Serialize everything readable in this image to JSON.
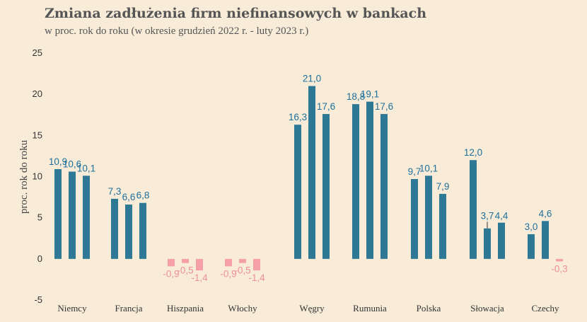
{
  "title": "Zmiana zadłużenia firm niefinansowych w bankach",
  "subtitle": "w proc. rok do roku (w okresie grudzień 2022 r. - luty 2023 r.)",
  "colors": {
    "positive": "#2c7895",
    "negative": "#f4a0a6",
    "positive_label": "#1f6f9a",
    "negative_label": "#ee8f96",
    "background": "#f8ecd9"
  },
  "chart_data": {
    "type": "bar",
    "title": "Zmiana zadłużenia firm niefinansowych w bankach",
    "subtitle": "w proc. rok do roku (w okresie grudzień 2022 r. - luty 2023 r.)",
    "xlabel": "",
    "ylabel": "proc. rok do roku",
    "ylim": [
      -5,
      25
    ],
    "yticks": [
      "-5",
      "0",
      "5",
      "10",
      "15",
      "20",
      "25"
    ],
    "grid": false,
    "categories": [
      "Niemcy",
      "Francja",
      "Hiszpania",
      "Włochy",
      "Węgry",
      "Rumunia",
      "Polska",
      "Słowacja",
      "Czechy"
    ],
    "values": [
      [
        10.9,
        10.6,
        10.1
      ],
      [
        7.3,
        6.6,
        6.8
      ],
      [
        -0.9,
        -0.5,
        -1.4
      ],
      [
        -0.9,
        -0.5,
        -1.4
      ],
      [
        16.3,
        21.0,
        17.6
      ],
      [
        18.8,
        19.1,
        17.6
      ],
      [
        9.7,
        10.1,
        7.9
      ],
      [
        12.0,
        3.7,
        4.4
      ],
      [
        3.0,
        4.6,
        -0.3
      ]
    ],
    "labels": [
      [
        "10,9",
        "10,6",
        "10,1"
      ],
      [
        "7,3",
        "6,6",
        "6,8"
      ],
      [
        "-0,9",
        "-0,5",
        "-1,4"
      ],
      [
        "-0,9",
        "-0,5",
        "-1,4"
      ],
      [
        "16,3",
        "21,0",
        "17,6"
      ],
      [
        "18,8",
        "19,1",
        "17,6"
      ],
      [
        "9,7",
        "10,1",
        "7,9"
      ],
      [
        "12,0",
        "3,7",
        "4,4"
      ],
      [
        "3,0",
        "4,6",
        "-0,3"
      ]
    ]
  }
}
